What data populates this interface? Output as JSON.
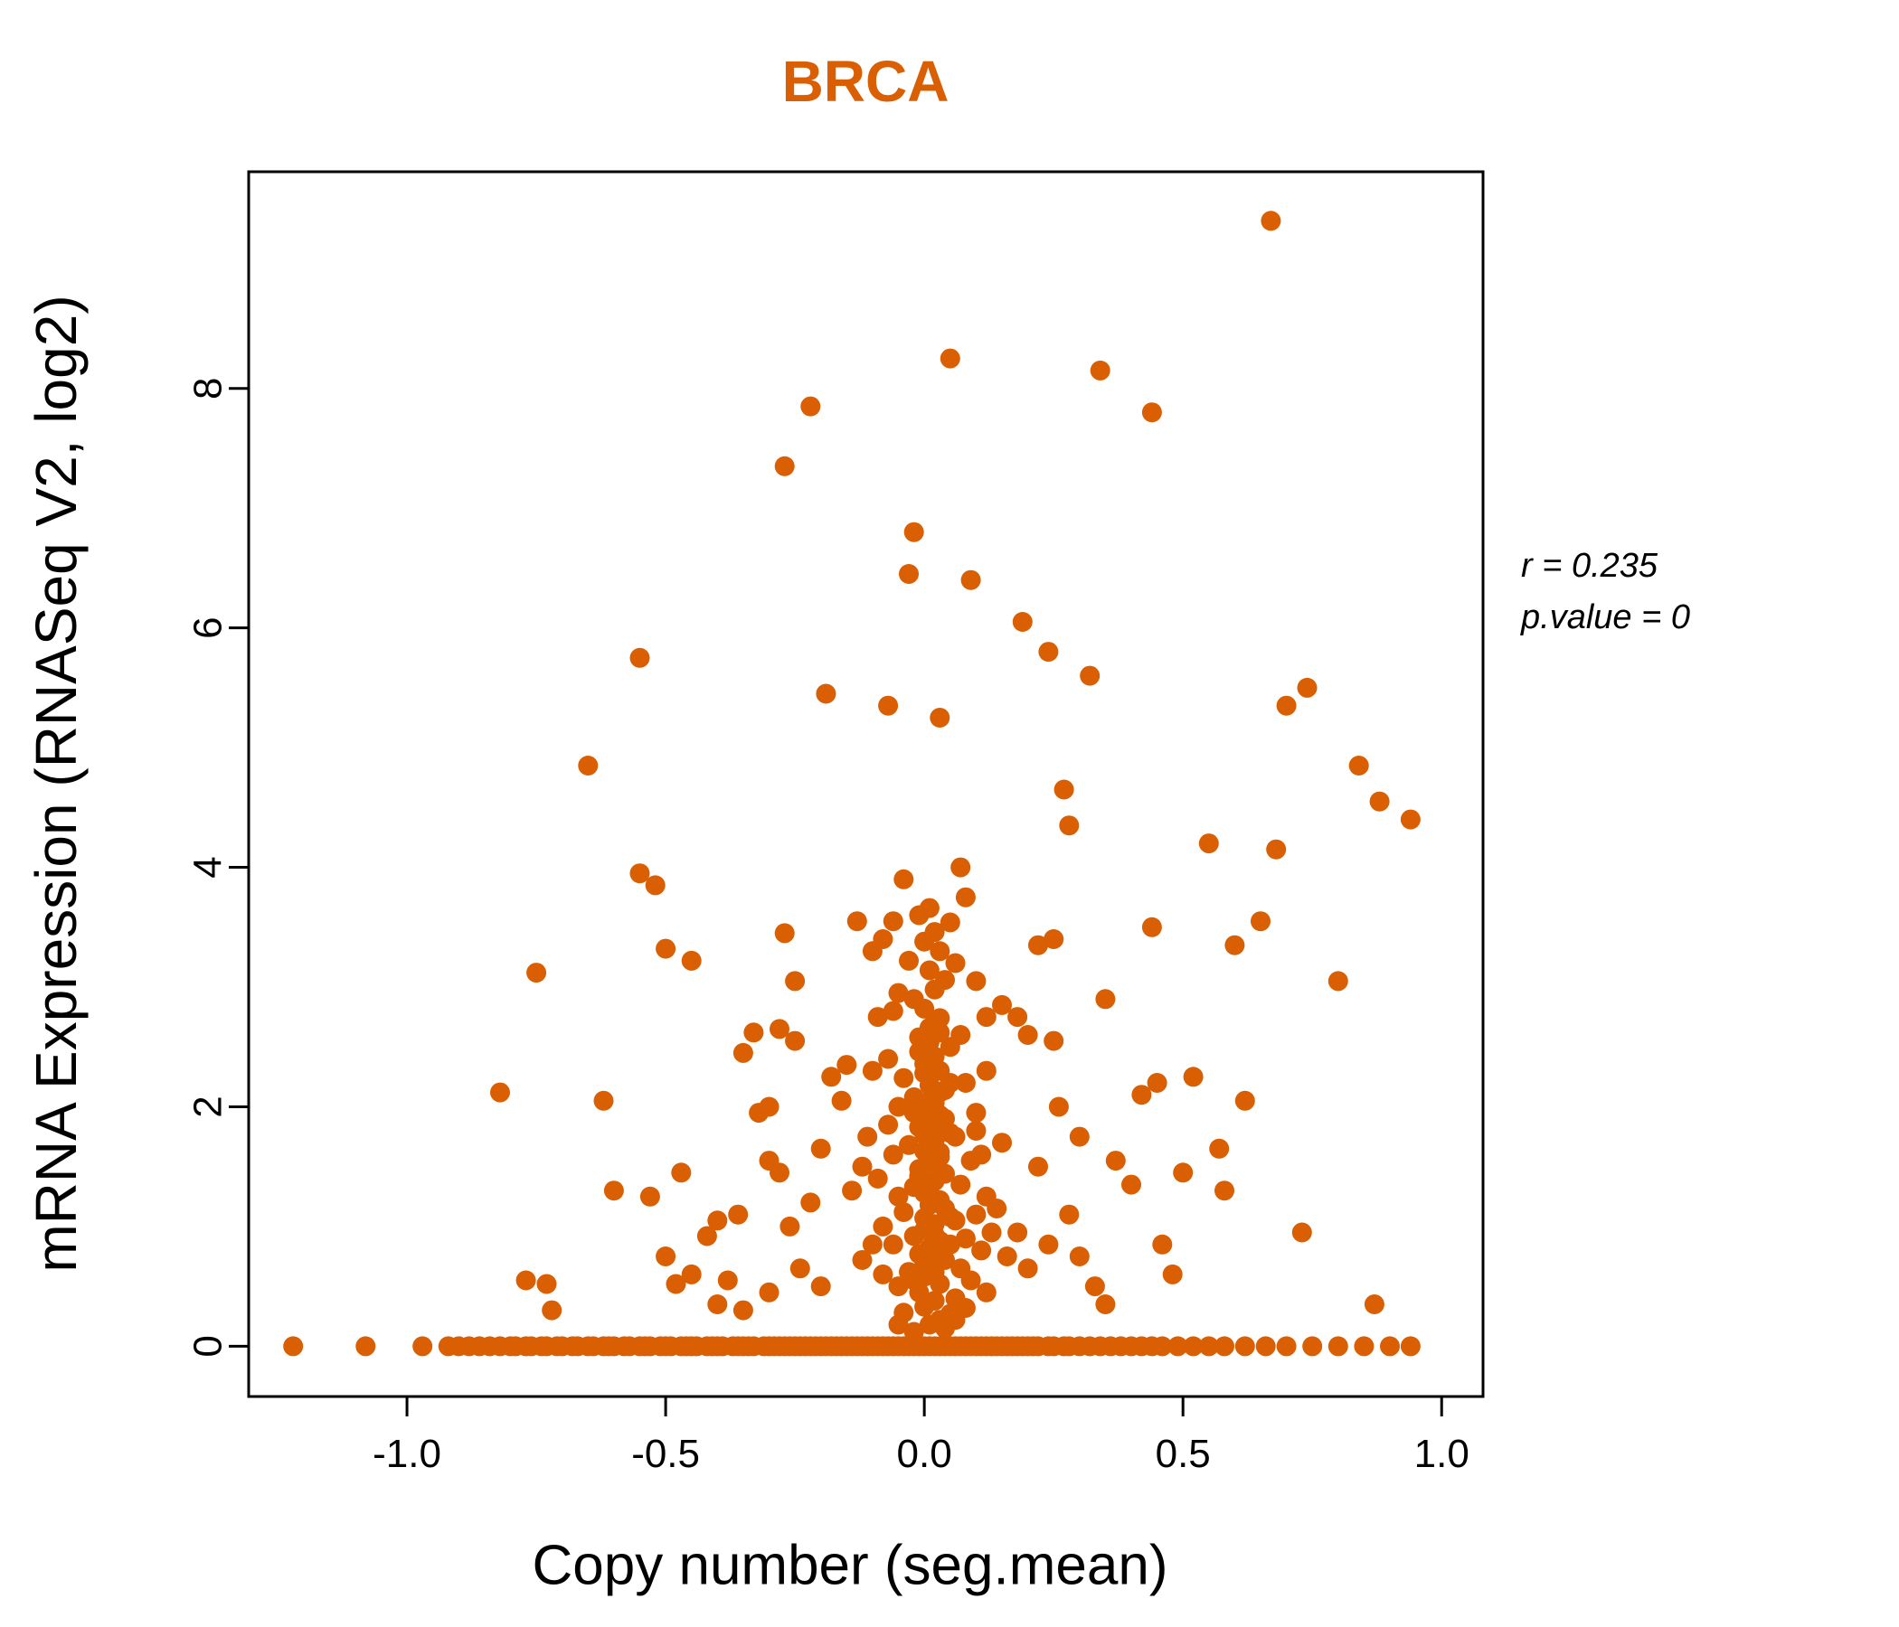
{
  "colors": {
    "accent": "#D95F02",
    "axis": "#000000",
    "background": "#FFFFFF"
  },
  "chart_data": {
    "type": "scatter",
    "title": "BRCA",
    "xlabel": "Copy number (seg.mean)",
    "ylabel": "mRNA Expression (RNASeq V2, log2)",
    "xlim": [
      -1.306,
      1.08
    ],
    "ylim": [
      -0.42,
      9.81
    ],
    "grid": false,
    "legend": "none",
    "point_color": "#D95F02",
    "annotations": [
      "r = 0.235",
      "p.value = 0"
    ],
    "x_ticks": [
      {
        "label": "-1.0",
        "value": -1.0
      },
      {
        "label": "-0.5",
        "value": -0.5
      },
      {
        "label": "0.0",
        "value": 0.0
      },
      {
        "label": "0.5",
        "value": 0.5
      },
      {
        "label": "1.0",
        "value": 1.0
      }
    ],
    "y_ticks": [
      {
        "label": "0",
        "value": 0
      },
      {
        "label": "2",
        "value": 2
      },
      {
        "label": "4",
        "value": 4
      },
      {
        "label": "6",
        "value": 6
      },
      {
        "label": "8",
        "value": 8
      }
    ],
    "points": [
      [
        -1.22,
        0
      ],
      [
        -1.08,
        0
      ],
      [
        -0.97,
        0
      ],
      [
        -0.92,
        0
      ],
      [
        -0.9,
        0
      ],
      [
        -0.88,
        0
      ],
      [
        -0.86,
        0
      ],
      [
        -0.84,
        0
      ],
      [
        -0.82,
        0
      ],
      [
        -0.8,
        0
      ],
      [
        -0.79,
        0
      ],
      [
        -0.77,
        0
      ],
      [
        -0.76,
        0
      ],
      [
        -0.74,
        0
      ],
      [
        -0.73,
        0
      ],
      [
        -0.71,
        0
      ],
      [
        -0.7,
        0
      ],
      [
        -0.68,
        0
      ],
      [
        -0.67,
        0
      ],
      [
        -0.65,
        0
      ],
      [
        -0.64,
        0
      ],
      [
        -0.62,
        0
      ],
      [
        -0.61,
        0
      ],
      [
        -0.6,
        0
      ],
      [
        -0.58,
        0
      ],
      [
        -0.57,
        0
      ],
      [
        -0.55,
        0
      ],
      [
        -0.54,
        0
      ],
      [
        -0.53,
        0
      ],
      [
        -0.51,
        0
      ],
      [
        -0.5,
        0
      ],
      [
        -0.49,
        0
      ],
      [
        -0.47,
        0
      ],
      [
        -0.46,
        0
      ],
      [
        -0.45,
        0
      ],
      [
        -0.44,
        0
      ],
      [
        -0.42,
        0
      ],
      [
        -0.41,
        0
      ],
      [
        -0.4,
        0
      ],
      [
        -0.39,
        0
      ],
      [
        -0.37,
        0
      ],
      [
        -0.36,
        0
      ],
      [
        -0.35,
        0
      ],
      [
        -0.34,
        0
      ],
      [
        -0.33,
        0
      ],
      [
        -0.31,
        0
      ],
      [
        -0.3,
        0
      ],
      [
        -0.29,
        0
      ],
      [
        -0.28,
        0
      ],
      [
        -0.27,
        0
      ],
      [
        -0.26,
        0
      ],
      [
        -0.25,
        0
      ],
      [
        -0.24,
        0
      ],
      [
        -0.23,
        0
      ],
      [
        -0.22,
        0
      ],
      [
        -0.21,
        0
      ],
      [
        -0.2,
        0
      ],
      [
        -0.19,
        0
      ],
      [
        -0.18,
        0
      ],
      [
        -0.17,
        0
      ],
      [
        -0.16,
        0
      ],
      [
        -0.15,
        0
      ],
      [
        -0.14,
        0
      ],
      [
        -0.13,
        0
      ],
      [
        -0.12,
        0
      ],
      [
        -0.11,
        0
      ],
      [
        -0.1,
        0
      ],
      [
        -0.09,
        0
      ],
      [
        -0.08,
        0
      ],
      [
        -0.07,
        0
      ],
      [
        -0.06,
        0
      ],
      [
        -0.05,
        0
      ],
      [
        -0.04,
        0
      ],
      [
        -0.03,
        0
      ],
      [
        -0.02,
        0
      ],
      [
        -0.01,
        0
      ],
      [
        0.0,
        0
      ],
      [
        0.01,
        0
      ],
      [
        0.02,
        0
      ],
      [
        0.03,
        0
      ],
      [
        0.04,
        0
      ],
      [
        0.05,
        0
      ],
      [
        0.06,
        0
      ],
      [
        0.07,
        0
      ],
      [
        0.08,
        0
      ],
      [
        0.09,
        0
      ],
      [
        0.1,
        0
      ],
      [
        0.11,
        0
      ],
      [
        0.12,
        0
      ],
      [
        0.13,
        0
      ],
      [
        0.14,
        0
      ],
      [
        0.15,
        0
      ],
      [
        0.16,
        0
      ],
      [
        0.17,
        0
      ],
      [
        0.18,
        0
      ],
      [
        0.19,
        0
      ],
      [
        0.2,
        0
      ],
      [
        0.21,
        0
      ],
      [
        0.22,
        0
      ],
      [
        0.24,
        0
      ],
      [
        0.25,
        0
      ],
      [
        0.27,
        0
      ],
      [
        0.28,
        0
      ],
      [
        0.3,
        0
      ],
      [
        0.32,
        0
      ],
      [
        0.34,
        0
      ],
      [
        0.36,
        0
      ],
      [
        0.38,
        0
      ],
      [
        0.4,
        0
      ],
      [
        0.42,
        0
      ],
      [
        0.44,
        0
      ],
      [
        0.46,
        0
      ],
      [
        0.49,
        0
      ],
      [
        0.52,
        0
      ],
      [
        0.55,
        0
      ],
      [
        0.58,
        0
      ],
      [
        0.62,
        0
      ],
      [
        0.66,
        0
      ],
      [
        0.7,
        0
      ],
      [
        0.75,
        0
      ],
      [
        0.8,
        0
      ],
      [
        0.85,
        0
      ],
      [
        0.9,
        0
      ],
      [
        0.94,
        0
      ],
      [
        -0.02,
        0.12
      ],
      [
        0.01,
        0.18
      ],
      [
        0.03,
        0.22
      ],
      [
        -0.04,
        0.28
      ],
      [
        0.0,
        0.33
      ],
      [
        0.02,
        0.38
      ],
      [
        0.05,
        0.27
      ],
      [
        -0.01,
        0.45
      ],
      [
        0.03,
        0.52
      ],
      [
        0.0,
        0.58
      ],
      [
        -0.03,
        0.62
      ],
      [
        0.02,
        0.66
      ],
      [
        0.04,
        0.72
      ],
      [
        -0.01,
        0.77
      ],
      [
        0.01,
        0.82
      ],
      [
        0.03,
        0.88
      ],
      [
        -0.02,
        0.92
      ],
      [
        0.0,
        0.97
      ],
      [
        0.02,
        1.02
      ],
      [
        0.05,
        1.08
      ],
      [
        -0.04,
        1.12
      ],
      [
        0.01,
        1.18
      ],
      [
        0.03,
        1.22
      ],
      [
        0.0,
        1.28
      ],
      [
        -0.02,
        1.33
      ],
      [
        0.02,
        1.38
      ],
      [
        0.04,
        1.44
      ],
      [
        -0.01,
        1.48
      ],
      [
        0.01,
        1.53
      ],
      [
        0.03,
        1.58
      ],
      [
        0.0,
        1.63
      ],
      [
        -0.03,
        1.68
      ],
      [
        0.02,
        1.72
      ],
      [
        0.05,
        1.78
      ],
      [
        -0.01,
        1.83
      ],
      [
        0.01,
        1.88
      ],
      [
        0.03,
        1.93
      ],
      [
        0.0,
        1.98
      ],
      [
        0.02,
        2.03
      ],
      [
        -0.02,
        2.08
      ],
      [
        0.04,
        2.14
      ],
      [
        0.01,
        2.18
      ],
      [
        -0.04,
        2.24
      ],
      [
        0.03,
        2.3
      ],
      [
        0.0,
        2.36
      ],
      [
        0.02,
        2.42
      ],
      [
        0.05,
        2.5
      ],
      [
        -0.01,
        2.58
      ],
      [
        0.01,
        2.66
      ],
      [
        0.03,
        2.74
      ],
      [
        0.0,
        2.82
      ],
      [
        -0.02,
        2.9
      ],
      [
        0.02,
        2.98
      ],
      [
        0.04,
        3.06
      ],
      [
        0.01,
        3.14
      ],
      [
        -0.03,
        3.22
      ],
      [
        0.03,
        3.3
      ],
      [
        0.0,
        3.38
      ],
      [
        0.02,
        3.46
      ],
      [
        0.05,
        3.54
      ],
      [
        -0.01,
        3.6
      ],
      [
        0.01,
        3.66
      ],
      [
        0.06,
        1.05
      ],
      [
        0.07,
        0.65
      ],
      [
        0.08,
        0.9
      ],
      [
        0.07,
        1.35
      ],
      [
        0.06,
        1.75
      ],
      [
        0.08,
        2.2
      ],
      [
        0.07,
        2.6
      ],
      [
        0.06,
        0.4
      ],
      [
        -0.05,
        0.5
      ],
      [
        -0.06,
        0.85
      ],
      [
        -0.05,
        1.25
      ],
      [
        -0.06,
        1.6
      ],
      [
        -0.05,
        2.0
      ],
      [
        -0.07,
        2.4
      ],
      [
        -0.06,
        2.8
      ],
      [
        0.09,
        1.55
      ],
      [
        0.1,
        1.1
      ],
      [
        0.09,
        0.55
      ],
      [
        0.11,
        0.8
      ],
      [
        0.1,
        1.95
      ],
      [
        0.12,
        1.25
      ],
      [
        0.11,
        1.6
      ],
      [
        0.13,
        0.95
      ],
      [
        0.12,
        0.45
      ],
      [
        -0.08,
        1.0
      ],
      [
        -0.09,
        1.4
      ],
      [
        -0.08,
        0.6
      ],
      [
        -0.07,
        1.85
      ],
      [
        0.04,
        0.15
      ],
      [
        0.06,
        0.22
      ],
      [
        -0.05,
        0.18
      ],
      [
        0.08,
        0.32
      ],
      [
        0.02,
        0.62
      ],
      [
        0.0,
        0.68
      ],
      [
        0.01,
        0.73
      ],
      [
        -0.02,
        0.55
      ],
      [
        0.03,
        0.78
      ],
      [
        0.05,
        0.85
      ],
      [
        0.02,
        0.93
      ],
      [
        0.0,
        1.07
      ],
      [
        0.04,
        1.15
      ],
      [
        0.01,
        1.32
      ],
      [
        -0.01,
        1.42
      ],
      [
        0.02,
        1.52
      ],
      [
        0.03,
        1.62
      ],
      [
        0.0,
        1.77
      ],
      [
        0.02,
        1.85
      ],
      [
        0.04,
        1.9
      ],
      [
        -0.02,
        1.95
      ],
      [
        0.01,
        2.05
      ],
      [
        0.03,
        2.12
      ],
      [
        0.05,
        2.2
      ],
      [
        0.0,
        2.28
      ],
      [
        0.02,
        2.34
      ],
      [
        -0.01,
        2.46
      ],
      [
        0.01,
        2.54
      ],
      [
        0.03,
        2.62
      ],
      [
        0.02,
        2.7
      ],
      [
        -0.82,
        2.12
      ],
      [
        -0.75,
        3.12
      ],
      [
        -0.72,
        0.3
      ],
      [
        -0.77,
        0.55
      ],
      [
        -0.73,
        0.52
      ],
      [
        -0.65,
        4.85
      ],
      [
        -0.62,
        2.05
      ],
      [
        -0.6,
        1.3
      ],
      [
        -0.55,
        5.75
      ],
      [
        -0.55,
        3.95
      ],
      [
        -0.52,
        3.85
      ],
      [
        -0.5,
        3.32
      ],
      [
        -0.53,
        1.25
      ],
      [
        -0.5,
        0.75
      ],
      [
        -0.48,
        0.52
      ],
      [
        -0.47,
        1.45
      ],
      [
        -0.45,
        3.22
      ],
      [
        -0.45,
        0.6
      ],
      [
        -0.42,
        0.92
      ],
      [
        -0.4,
        1.05
      ],
      [
        -0.4,
        0.35
      ],
      [
        -0.38,
        0.55
      ],
      [
        -0.36,
        1.1
      ],
      [
        -0.35,
        2.45
      ],
      [
        -0.35,
        0.3
      ],
      [
        -0.33,
        2.62
      ],
      [
        -0.32,
        1.95
      ],
      [
        -0.3,
        2.0
      ],
      [
        -0.3,
        1.55
      ],
      [
        -0.3,
        0.45
      ],
      [
        -0.28,
        2.65
      ],
      [
        -0.28,
        1.45
      ],
      [
        -0.27,
        3.45
      ],
      [
        -0.27,
        7.35
      ],
      [
        -0.26,
        1.0
      ],
      [
        -0.25,
        3.05
      ],
      [
        -0.25,
        2.55
      ],
      [
        -0.24,
        0.65
      ],
      [
        -0.22,
        7.85
      ],
      [
        -0.22,
        1.2
      ],
      [
        -0.2,
        1.65
      ],
      [
        -0.2,
        0.5
      ],
      [
        -0.19,
        5.45
      ],
      [
        -0.18,
        2.25
      ],
      [
        -0.16,
        2.05
      ],
      [
        -0.15,
        2.35
      ],
      [
        -0.14,
        1.3
      ],
      [
        -0.12,
        1.5
      ],
      [
        -0.12,
        0.72
      ],
      [
        -0.1,
        0.85
      ],
      [
        -0.1,
        2.3
      ],
      [
        -0.11,
        1.75
      ],
      [
        -0.13,
        3.55
      ],
      [
        -0.1,
        3.3
      ],
      [
        -0.09,
        2.75
      ],
      [
        -0.07,
        5.35
      ],
      [
        -0.06,
        3.55
      ],
      [
        -0.04,
        3.9
      ],
      [
        -0.02,
        6.8
      ],
      [
        -0.03,
        6.45
      ],
      [
        -0.08,
        3.4
      ],
      [
        -0.05,
        2.95
      ],
      [
        0.03,
        5.25
      ],
      [
        0.05,
        8.25
      ],
      [
        0.07,
        4.0
      ],
      [
        0.08,
        3.75
      ],
      [
        0.06,
        3.2
      ],
      [
        0.09,
        6.4
      ],
      [
        0.1,
        3.05
      ],
      [
        0.1,
        1.8
      ],
      [
        0.12,
        2.3
      ],
      [
        0.12,
        2.75
      ],
      [
        0.14,
        1.15
      ],
      [
        0.15,
        2.85
      ],
      [
        0.15,
        1.7
      ],
      [
        0.16,
        0.75
      ],
      [
        0.18,
        2.75
      ],
      [
        0.18,
        0.95
      ],
      [
        0.19,
        6.05
      ],
      [
        0.2,
        2.6
      ],
      [
        0.2,
        0.65
      ],
      [
        0.22,
        3.35
      ],
      [
        0.22,
        1.5
      ],
      [
        0.24,
        5.8
      ],
      [
        0.24,
        0.85
      ],
      [
        0.25,
        3.4
      ],
      [
        0.25,
        2.55
      ],
      [
        0.26,
        2.0
      ],
      [
        0.27,
        4.65
      ],
      [
        0.28,
        4.35
      ],
      [
        0.28,
        1.1
      ],
      [
        0.3,
        1.75
      ],
      [
        0.3,
        0.75
      ],
      [
        0.32,
        5.6
      ],
      [
        0.33,
        0.5
      ],
      [
        0.34,
        8.15
      ],
      [
        0.35,
        2.9
      ],
      [
        0.35,
        0.35
      ],
      [
        0.37,
        1.55
      ],
      [
        0.4,
        1.35
      ],
      [
        0.42,
        2.1
      ],
      [
        0.44,
        7.8
      ],
      [
        0.44,
        3.5
      ],
      [
        0.45,
        2.2
      ],
      [
        0.46,
        0.85
      ],
      [
        0.48,
        0.6
      ],
      [
        0.5,
        1.45
      ],
      [
        0.52,
        2.25
      ],
      [
        0.55,
        4.2
      ],
      [
        0.57,
        1.65
      ],
      [
        0.58,
        1.3
      ],
      [
        0.6,
        3.35
      ],
      [
        0.62,
        2.05
      ],
      [
        0.65,
        3.55
      ],
      [
        0.67,
        9.4
      ],
      [
        0.68,
        4.15
      ],
      [
        0.7,
        5.35
      ],
      [
        0.73,
        0.95
      ],
      [
        0.74,
        5.5
      ],
      [
        0.8,
        3.05
      ],
      [
        0.84,
        4.85
      ],
      [
        0.87,
        0.35
      ],
      [
        0.88,
        4.55
      ],
      [
        0.94,
        4.4
      ]
    ]
  }
}
